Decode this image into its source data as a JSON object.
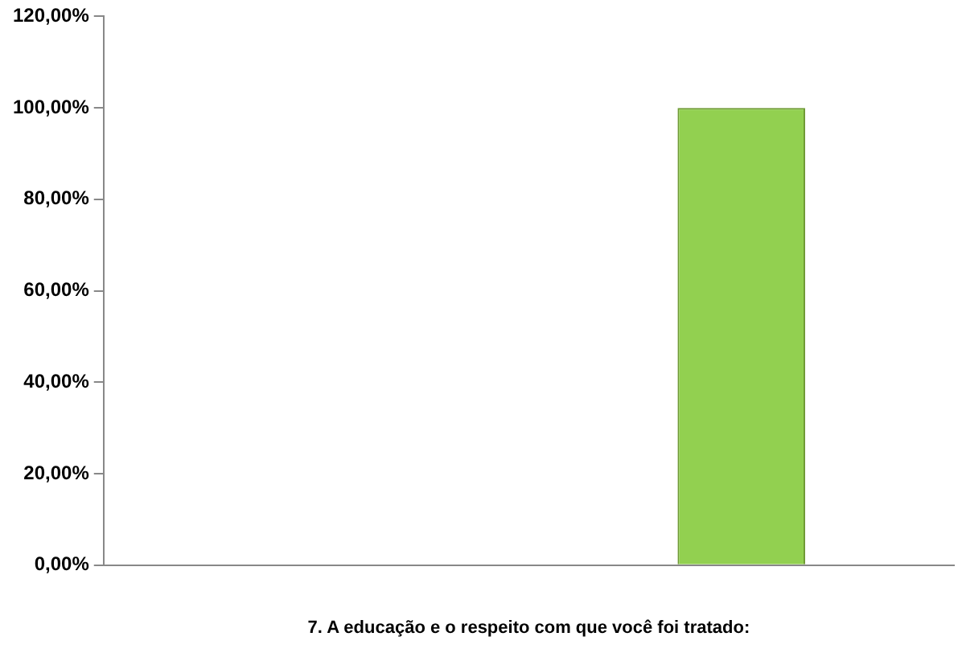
{
  "chart_data": {
    "type": "bar",
    "xlabel": "7. A educação e o respeito com que você foi tratado:",
    "categories": [
      null,
      null
    ],
    "values": [
      0,
      100
    ],
    "color": "#92d050",
    "ylim": [
      0,
      120
    ],
    "yticks": [
      {
        "value": 0,
        "label": "0,00%"
      },
      {
        "value": 20,
        "label": "20,00%"
      },
      {
        "value": 40,
        "label": "40,00%"
      },
      {
        "value": 60,
        "label": "60,00%"
      },
      {
        "value": 80,
        "label": "80,00%"
      },
      {
        "value": 100,
        "label": "100,00%"
      },
      {
        "value": 120,
        "label": "120,00%"
      }
    ],
    "grid": false,
    "legend": false
  }
}
